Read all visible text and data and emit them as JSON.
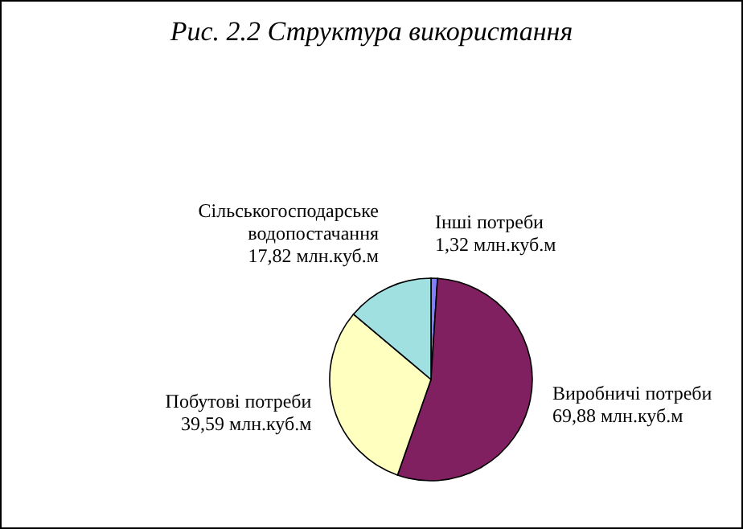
{
  "chart_data": {
    "type": "pie",
    "title": "Рис. 2.2 Структура використання",
    "categories": [
      "Інші потреби",
      "Виробничі потреби",
      "Побутові потреби",
      "Сільськогосподарське водопостачання"
    ],
    "values": [
      1.32,
      69.88,
      39.59,
      17.82
    ],
    "value_labels": [
      "1,32 млн.куб.м",
      "69,88 млн.куб.м",
      "39,59 млн.куб.м",
      "17,82 млн.куб.м"
    ],
    "colors": [
      "#8080ff",
      "#802060",
      "#ffffc0",
      "#a0e0e0"
    ],
    "legend": false
  }
}
